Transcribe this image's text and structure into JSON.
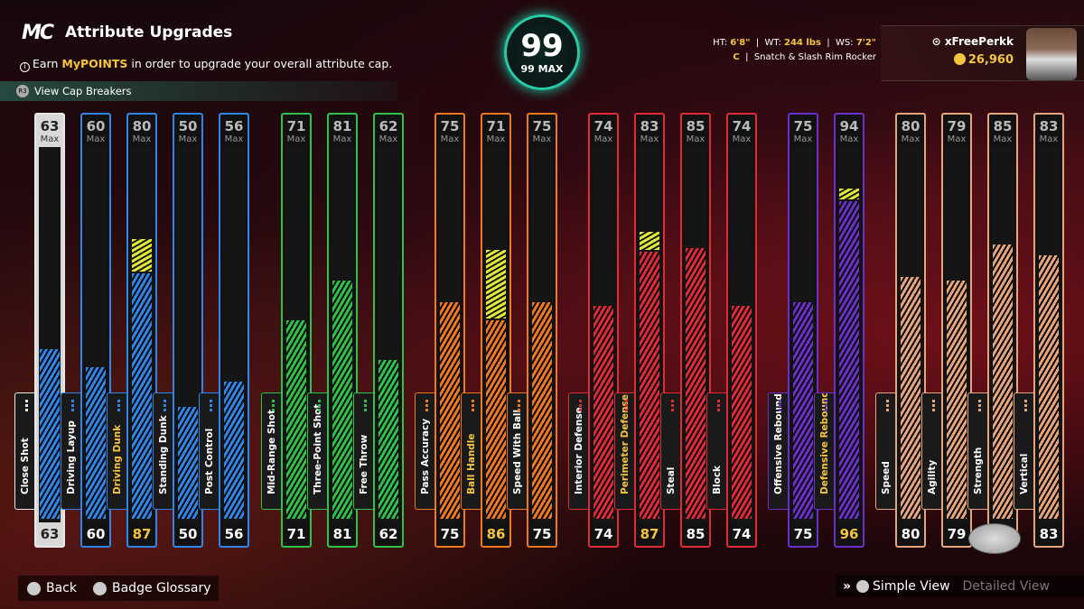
{
  "header": {
    "logo": "MC",
    "title": "Attribute Upgrades",
    "subtitle_pre": "Earn ",
    "subtitle_hl": "MyPOINTS",
    "subtitle_post": " in order to upgrade your overall attribute cap.",
    "cap_breakers": "View Cap Breakers"
  },
  "overall": {
    "value": "99",
    "max_label": "99 MAX"
  },
  "physicals": {
    "ht_label": "HT:",
    "ht": "6'8\"",
    "wt_label": "WT:",
    "wt": "244 lbs",
    "ws_label": "WS:",
    "ws": "7'2\"",
    "position": "C",
    "archetype": "Snatch & Slash Rim Rocker"
  },
  "player": {
    "name": "xFreePerkk",
    "vc": "26,960"
  },
  "max_label": "Max",
  "attributes": [
    {
      "name": "Close Shot",
      "max": "63",
      "value": "63",
      "pct": 0.47,
      "color": "#2f86e8",
      "group": "white"
    },
    {
      "name": "Driving Layup",
      "max": "60",
      "value": "60",
      "pct": 0.42,
      "color": "#2f86e8",
      "group": "blue"
    },
    {
      "name": "Driving Dunk",
      "max": "80",
      "value": "87",
      "pct": 0.68,
      "upgrade": 0.09,
      "color": "#2f86e8",
      "group": "blue",
      "boost": true
    },
    {
      "name": "Standing Dunk",
      "max": "50",
      "value": "50",
      "pct": 0.31,
      "color": "#2f86e8",
      "group": "blue"
    },
    {
      "name": "Post Control",
      "max": "56",
      "value": "56",
      "pct": 0.38,
      "color": "#2f86e8",
      "group": "blue"
    },
    {
      "name": "Mid-Range Shot",
      "max": "71",
      "value": "71",
      "pct": 0.55,
      "color": "#2fc24a",
      "group": "green"
    },
    {
      "name": "Three-Point Shot",
      "max": "81",
      "value": "81",
      "pct": 0.66,
      "color": "#2fc24a",
      "group": "green"
    },
    {
      "name": "Free Throw",
      "max": "62",
      "value": "62",
      "pct": 0.44,
      "color": "#2fc24a",
      "group": "green"
    },
    {
      "name": "Pass Accuracy",
      "max": "75",
      "value": "75",
      "pct": 0.6,
      "color": "#f07820",
      "group": "orange"
    },
    {
      "name": "Ball Handle",
      "max": "71",
      "value": "86",
      "pct": 0.55,
      "upgrade": 0.19,
      "color": "#f07820",
      "group": "orange",
      "boost": true
    },
    {
      "name": "Speed With Ball",
      "max": "75",
      "value": "75",
      "pct": 0.6,
      "color": "#f07820",
      "group": "orange"
    },
    {
      "name": "Interior Defense",
      "max": "74",
      "value": "74",
      "pct": 0.59,
      "color": "#e02a36",
      "group": "red"
    },
    {
      "name": "Perimeter Defense",
      "max": "83",
      "value": "87",
      "pct": 0.74,
      "upgrade": 0.05,
      "color": "#e02a36",
      "group": "red",
      "boost": true
    },
    {
      "name": "Steal",
      "max": "85",
      "value": "85",
      "pct": 0.75,
      "color": "#e02a36",
      "group": "red"
    },
    {
      "name": "Block",
      "max": "74",
      "value": "74",
      "pct": 0.59,
      "color": "#e02a36",
      "group": "red"
    },
    {
      "name": "Offensive Rebound",
      "max": "75",
      "value": "75",
      "pct": 0.6,
      "color": "#6a30c8",
      "group": "purple"
    },
    {
      "name": "Defensive Rebound",
      "max": "94",
      "value": "96",
      "pct": 0.88,
      "upgrade": 0.03,
      "color": "#6a30c8",
      "group": "purple",
      "boost": true
    },
    {
      "name": "Speed",
      "max": "80",
      "value": "80",
      "pct": 0.67,
      "color": "#e8a57c",
      "group": "tan"
    },
    {
      "name": "Agility",
      "max": "79",
      "value": "79",
      "pct": 0.66,
      "color": "#e8a57c",
      "group": "tan"
    },
    {
      "name": "Strength",
      "max": "85",
      "value": "85",
      "pct": 0.76,
      "color": "#e8a57c",
      "group": "tan"
    },
    {
      "name": "Vertical",
      "max": "83",
      "value": "83",
      "pct": 0.73,
      "color": "#e8a57c",
      "group": "tan"
    }
  ],
  "colors": {
    "white": "#e8e8e8",
    "blue": "#2f86e8",
    "green": "#2fc24a",
    "orange": "#f07820",
    "red": "#e02a36",
    "purple": "#6a30c8",
    "tan": "#e8a57c",
    "accent": "#27c9a6",
    "gold": "#f5c542"
  },
  "footer": {
    "back": "Back",
    "glossary": "Badge Glossary",
    "simple": "Simple View",
    "detailed": "Detailed View"
  }
}
